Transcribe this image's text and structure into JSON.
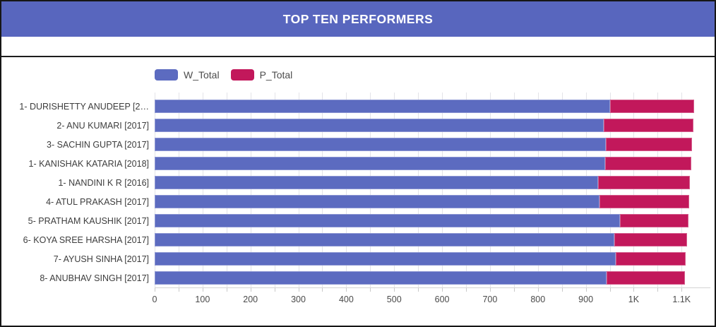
{
  "header": {
    "title": "TOP TEN PERFORMERS",
    "background_color": "#5866BE",
    "text_color": "#FFFFFF"
  },
  "chart_data": {
    "type": "bar",
    "orientation": "horizontal",
    "stacked": true,
    "title": "TOP TEN PERFORMERS",
    "legend_position": "top-left",
    "grid": true,
    "xlabel": "",
    "ylabel": "",
    "categories": [
      "1- DURISHETTY ANUDEEP [2…",
      "2- ANU KUMARI [2017]",
      "3- SACHIN GUPTA [2017]",
      "1- KANISHAK KATARIA [2018]",
      "1- NANDINI K R [2016]",
      "4- ATUL PRAKASH [2017]",
      "5- PRATHAM KAUSHIK [2017]",
      "6- KOYA SREE HARSHA [2017]",
      "7- AYUSH SINHA [2017]",
      "8- ANUBHAV SINGH [2017]"
    ],
    "series": [
      {
        "name": "W_Total",
        "color": "#5C6BC0",
        "values": [
          950,
          937,
          942,
          940,
          926,
          928,
          972,
          959,
          962,
          943
        ]
      },
      {
        "name": "P_Total",
        "color": "#C2185B",
        "values": [
          176,
          187,
          180,
          180,
          192,
          188,
          142,
          152,
          147,
          164
        ]
      }
    ],
    "xlim": [
      0,
      1160
    ],
    "x_ticks": [
      {
        "value": 0,
        "label": "0"
      },
      {
        "value": 100,
        "label": "100"
      },
      {
        "value": 200,
        "label": "200"
      },
      {
        "value": 300,
        "label": "300"
      },
      {
        "value": 400,
        "label": "400"
      },
      {
        "value": 500,
        "label": "500"
      },
      {
        "value": 600,
        "label": "600"
      },
      {
        "value": 700,
        "label": "700"
      },
      {
        "value": 800,
        "label": "800"
      },
      {
        "value": 900,
        "label": "900"
      },
      {
        "value": 1000,
        "label": "1K"
      },
      {
        "value": 1100,
        "label": "1.1K"
      }
    ],
    "minor_tick_step": 50,
    "gridline_color": "#e3e3e8"
  }
}
